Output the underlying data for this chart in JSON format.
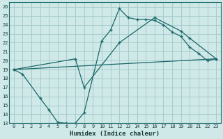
{
  "xlabel": "Humidex (Indice chaleur)",
  "xlim": [
    -0.5,
    23.5
  ],
  "ylim": [
    13,
    26.5
  ],
  "yticks": [
    13,
    14,
    15,
    16,
    17,
    18,
    19,
    20,
    21,
    22,
    23,
    24,
    25,
    26
  ],
  "xticks": [
    0,
    1,
    2,
    3,
    4,
    5,
    6,
    7,
    8,
    9,
    10,
    11,
    12,
    13,
    14,
    15,
    16,
    17,
    18,
    19,
    20,
    21,
    22,
    23
  ],
  "bg_color": "#cfe8e8",
  "grid_color": "#a8cccc",
  "line_color": "#1a6868",
  "line1_x": [
    0,
    1,
    3,
    4,
    5,
    6,
    7,
    8,
    10,
    11,
    12,
    13,
    14,
    15,
    16,
    17,
    18,
    19,
    20,
    21,
    22,
    23
  ],
  "line1_y": [
    19.0,
    18.5,
    15.8,
    14.5,
    13.1,
    13.0,
    13.0,
    14.2,
    22.2,
    23.4,
    25.8,
    24.8,
    24.6,
    24.6,
    24.5,
    24.0,
    23.2,
    22.7,
    21.5,
    20.8,
    20.0,
    20.2
  ],
  "line2_x": [
    0,
    23
  ],
  "line2_y": [
    19.0,
    20.2
  ],
  "line3_x": [
    0,
    7,
    8,
    12,
    16,
    19,
    20,
    23
  ],
  "line3_y": [
    19.0,
    20.2,
    17.0,
    22.0,
    24.8,
    23.3,
    22.5,
    20.2
  ]
}
